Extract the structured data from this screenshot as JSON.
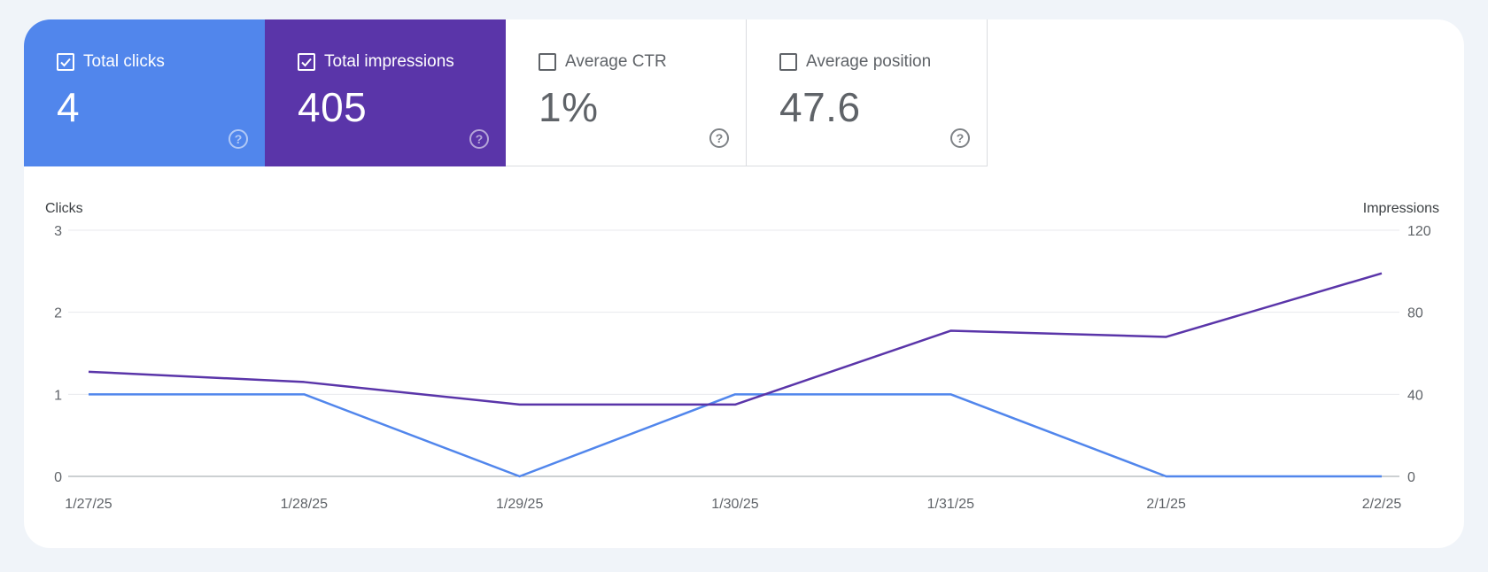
{
  "metrics": [
    {
      "label": "Total clicks",
      "value": "4",
      "checked": true,
      "color": "#5186ec"
    },
    {
      "label": "Total impressions",
      "value": "405",
      "checked": true,
      "color": "#5a35a9"
    },
    {
      "label": "Average CTR",
      "value": "1%",
      "checked": false
    },
    {
      "label": "Average position",
      "value": "47.6",
      "checked": false
    }
  ],
  "help_glyph": "?",
  "chart_data": {
    "type": "line",
    "x": [
      "1/27/25",
      "1/28/25",
      "1/29/25",
      "1/30/25",
      "1/31/25",
      "2/1/25",
      "2/2/25"
    ],
    "ylabel_left": "Clicks",
    "ylabel_right": "Impressions",
    "ylim_left": [
      0,
      3
    ],
    "ylim_right": [
      0,
      120
    ],
    "yticks_left": [
      0,
      1,
      2,
      3
    ],
    "yticks_right": [
      0,
      40,
      80,
      120
    ],
    "grid": true,
    "series": [
      {
        "name": "Total clicks",
        "axis": "left",
        "color": "#5186ec",
        "values": [
          1,
          1,
          0,
          1,
          1,
          0,
          0
        ]
      },
      {
        "name": "Total impressions",
        "axis": "right",
        "color": "#5a35a9",
        "values": [
          51,
          46,
          35,
          35,
          71,
          68,
          99
        ]
      }
    ]
  }
}
